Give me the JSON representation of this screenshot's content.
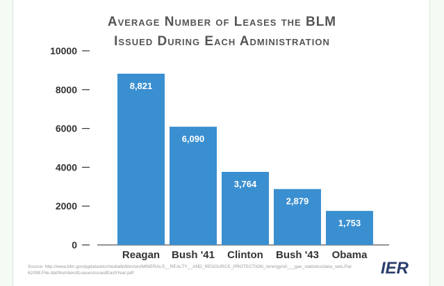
{
  "chart_data": {
    "type": "bar",
    "title_line1": "Average Number of Leases the BLM",
    "title_line2": "Issued During Each Administration",
    "categories": [
      "Reagan",
      "Bush '41",
      "Clinton",
      "Bush '43",
      "Obama"
    ],
    "values": [
      8821,
      6090,
      3764,
      2879,
      1753
    ],
    "value_labels": [
      "8,821",
      "6,090",
      "3,764",
      "2,879",
      "1,753"
    ],
    "yticks": [
      "0",
      "2000",
      "4000",
      "6000",
      "8000",
      "10000"
    ],
    "ytick_values": [
      0,
      2000,
      4000,
      6000,
      8000,
      10000
    ],
    "ylim": [
      0,
      10000
    ],
    "grid": false,
    "xlabel": "",
    "ylabel": "",
    "bar_color": "#3a8fd0"
  },
  "footer": {
    "source": "Source: http://www.blm.gov/pgdata/etc/medialib/blm/wo/MINERALS__REALTY__AND_RESOURCE_PROTECTION_/energy/oil___gas_statistics/data_sets.Par.62098.File.dat/NumberofLeasesIssuedEachYear.pdf",
    "logo": "IER"
  }
}
